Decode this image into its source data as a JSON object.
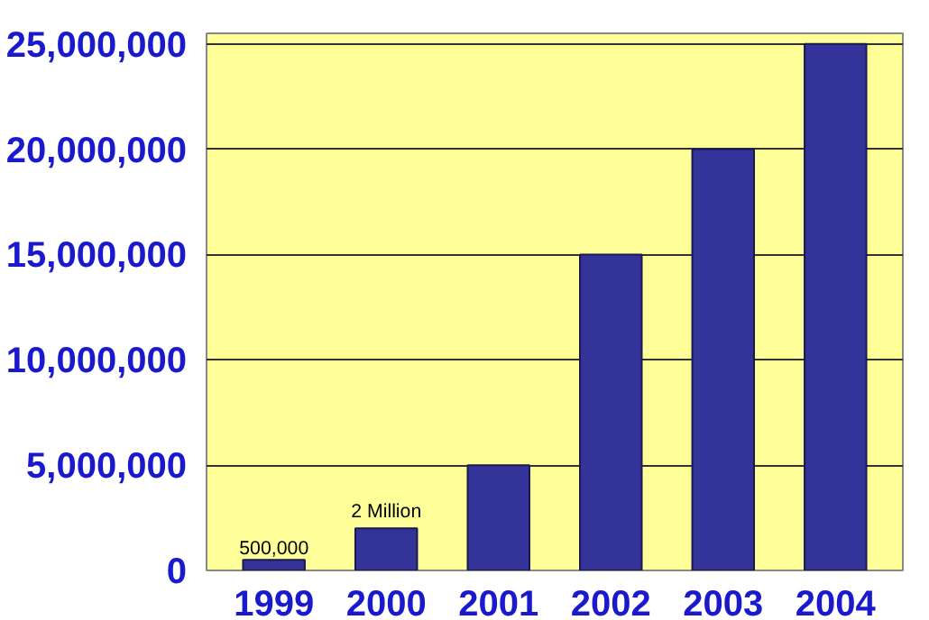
{
  "chart_data": {
    "type": "bar",
    "categories": [
      "1999",
      "2000",
      "2001",
      "2002",
      "2003",
      "2004"
    ],
    "values": [
      500000,
      2000000,
      5000000,
      15000000,
      20000000,
      25000000
    ],
    "annotations": [
      {
        "text": "500,000",
        "x": "1999",
        "y": 500000
      },
      {
        "text": "2 Million",
        "x": "2000",
        "y": 2000000
      }
    ],
    "color": "#333399",
    "ylim": [
      0,
      25500000
    ],
    "yticks": [
      {
        "value": 0,
        "label": "0"
      },
      {
        "value": 5000000,
        "label": "5,000,000"
      },
      {
        "value": 10000000,
        "label": "10,000,000"
      },
      {
        "value": 15000000,
        "label": "15,000,000"
      },
      {
        "value": 20000000,
        "label": "20,000,000"
      },
      {
        "value": 25000000,
        "label": "25,000,000"
      }
    ],
    "grid": "y"
  }
}
